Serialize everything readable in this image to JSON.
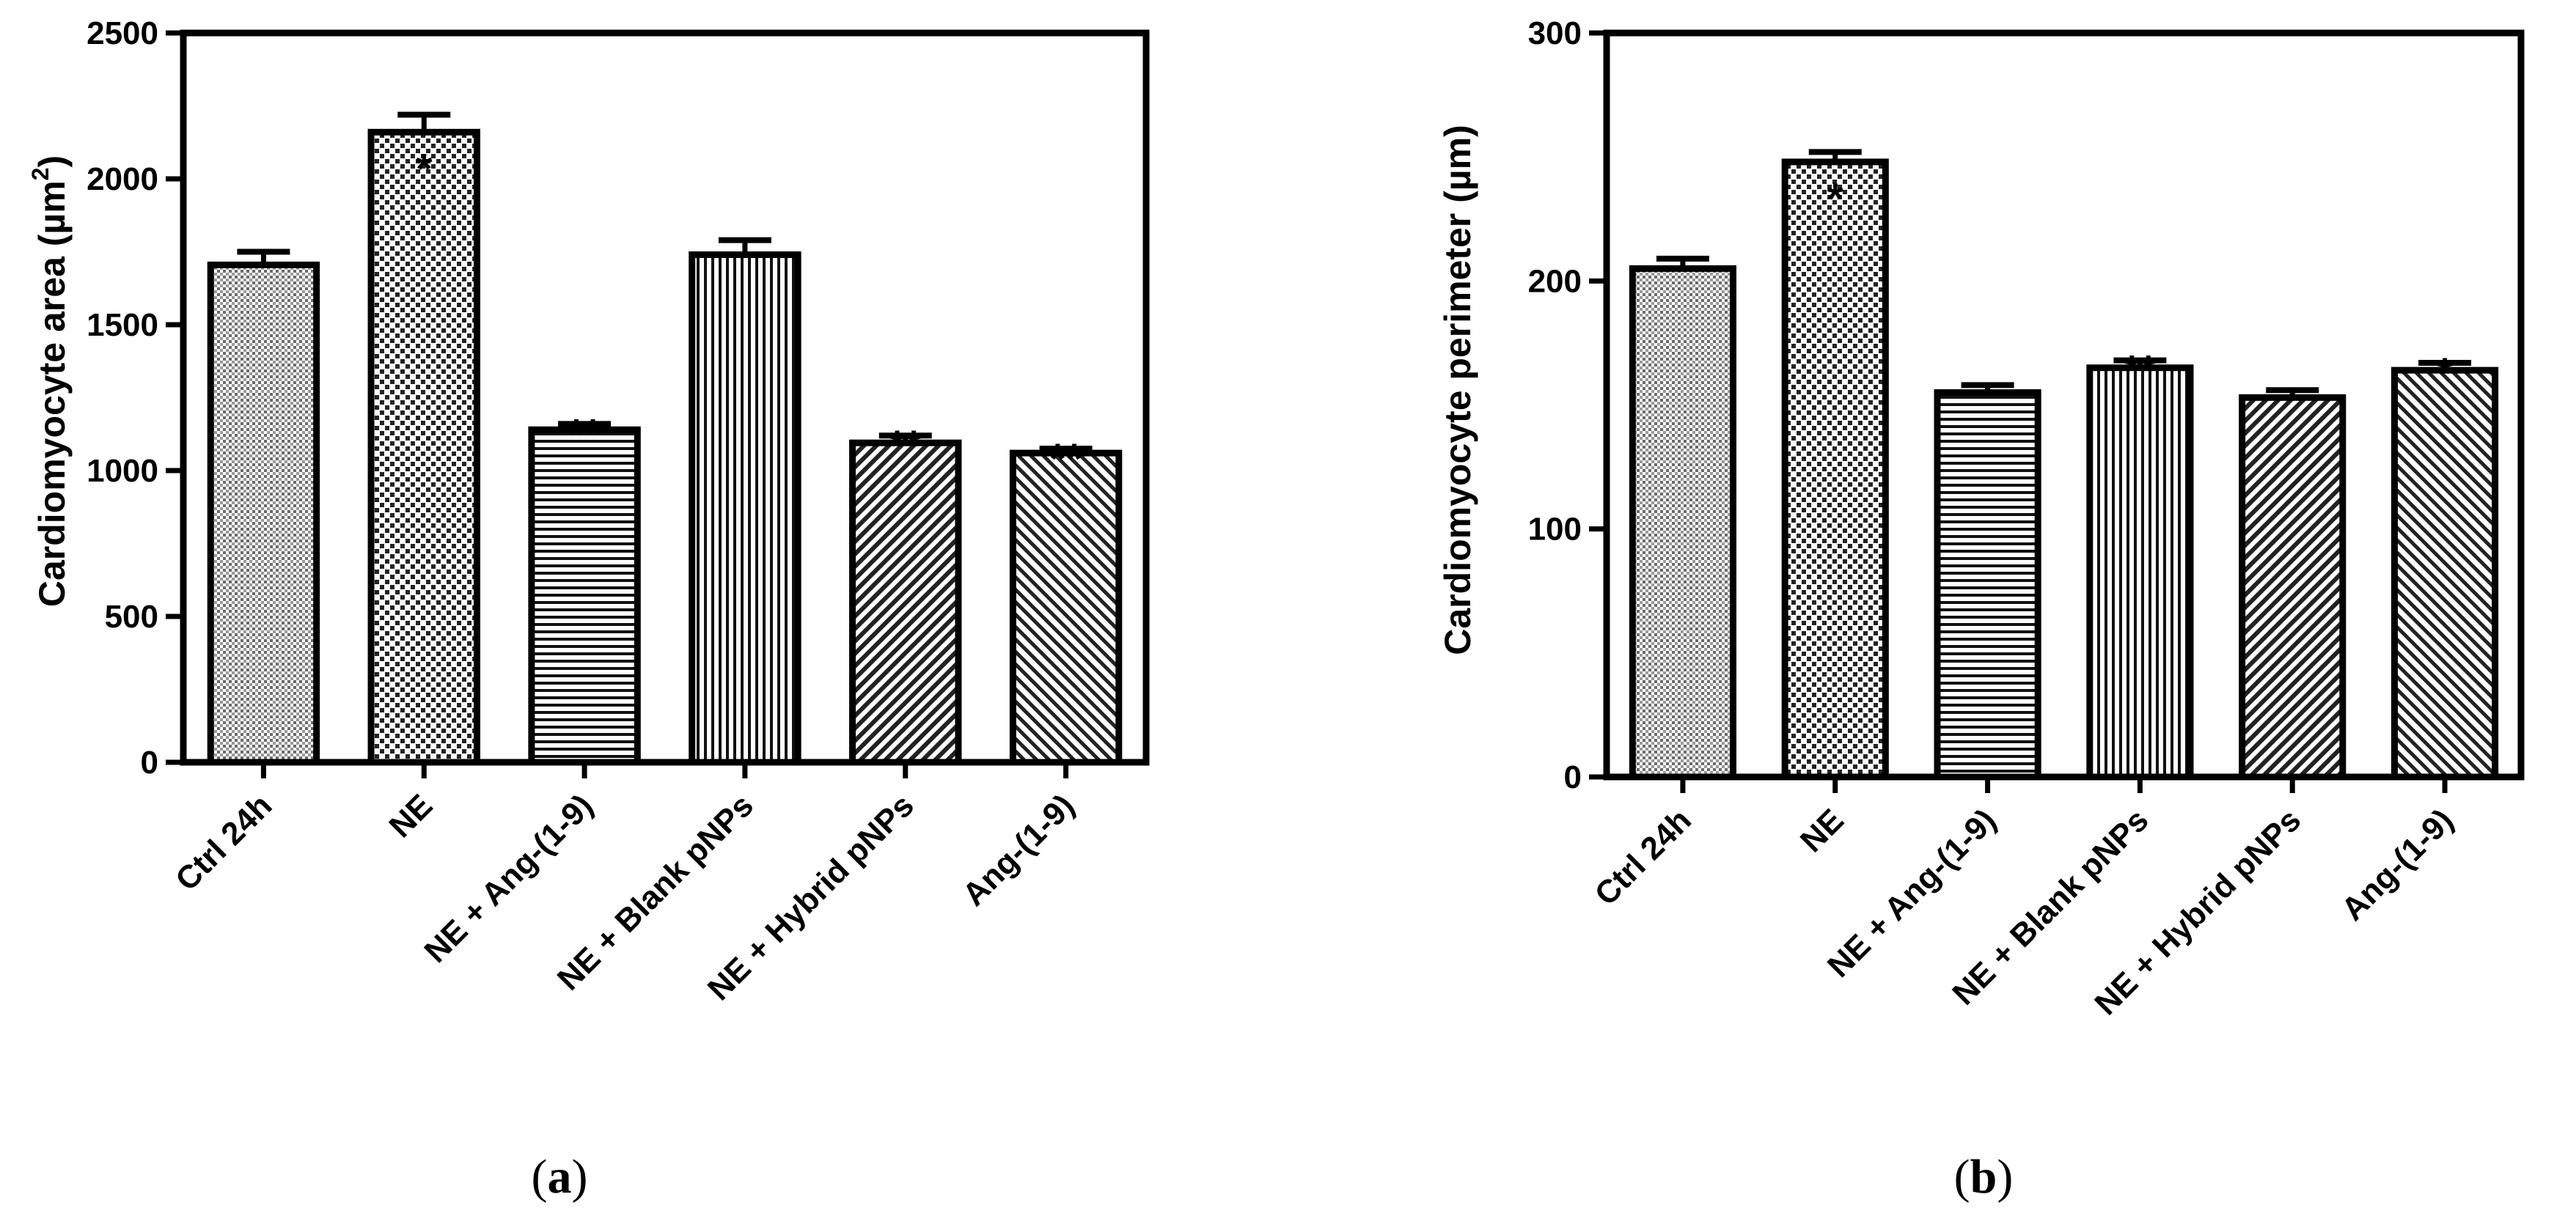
{
  "chart_data": [
    {
      "type": "bar",
      "panel": "a",
      "title": "",
      "xlabel": "",
      "ylabel": "Cardiomyocyte area (µm",
      "ylabel_sup": "2",
      "ylabel_close": ")",
      "ylim": [
        0,
        2500
      ],
      "yticks": [
        0,
        500,
        1000,
        1500,
        2000,
        2500
      ],
      "categories": [
        "Ctrl 24h",
        "NE",
        "NE + Ang-(1-9)",
        "NE + Blank pNPs",
        "NE + Hybrid pNPs",
        "Ang-(1-9)"
      ],
      "values": [
        1705,
        2160,
        1140,
        1740,
        1095,
        1060
      ],
      "errors": [
        45,
        60,
        20,
        50,
        25,
        15
      ],
      "patterns": [
        "fine-dots",
        "coarse-dots",
        "horizontal",
        "vertical",
        "diag-right",
        "diag-left"
      ],
      "significance": [
        {
          "category": "NE",
          "label": "*",
          "placement": "inside"
        },
        {
          "category": "NE + Ang-(1-9)",
          "label": "**",
          "placement": "top"
        },
        {
          "category": "NE + Hybrid pNPs",
          "label": "**",
          "placement": "top"
        },
        {
          "category": "Ang-(1-9)",
          "label": "**",
          "placement": "top"
        }
      ]
    },
    {
      "type": "bar",
      "panel": "b",
      "title": "",
      "xlabel": "",
      "ylabel": "Cardiomyocyte perimeter (µm)",
      "ylim": [
        0,
        300
      ],
      "yticks": [
        0,
        100,
        200,
        300
      ],
      "categories": [
        "Ctrl 24h",
        "NE",
        "NE + Ang-(1-9)",
        "NE + Blank pNPs",
        "NE + Hybrid pNPs",
        "Ang-(1-9)"
      ],
      "values": [
        205,
        248,
        155,
        165,
        153,
        164
      ],
      "errors": [
        4,
        4,
        3,
        3,
        3,
        3
      ],
      "patterns": [
        "fine-dots",
        "coarse-dots",
        "horizontal",
        "vertical",
        "diag-right",
        "diag-left"
      ],
      "significance": [
        {
          "category": "NE",
          "label": "*",
          "placement": "inside"
        },
        {
          "category": "NE + Blank pNPs",
          "label": "**",
          "placement": "top"
        },
        {
          "category": "Ang-(1-9)",
          "label": "*",
          "placement": "top"
        }
      ]
    }
  ],
  "panel_labels": {
    "a": {
      "open": "(",
      "letter": "a",
      "close": ")"
    },
    "b": {
      "open": "(",
      "letter": "b",
      "close": ")"
    }
  }
}
